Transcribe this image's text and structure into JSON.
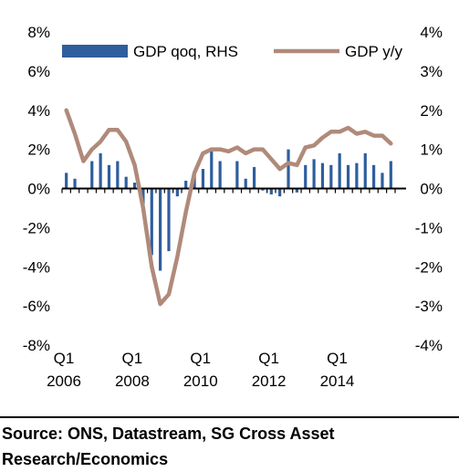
{
  "chart_data": {
    "type": "bar+line",
    "legend": {
      "position": "top"
    },
    "grid": false,
    "left_axis": {
      "ylim": [
        -8,
        8
      ],
      "ticks": [
        "8%",
        "6%",
        "4%",
        "2%",
        "0%",
        "-2%",
        "-4%",
        "-6%",
        "-8%"
      ]
    },
    "right_axis": {
      "ylim": [
        -4,
        4
      ],
      "ticks": [
        "4%",
        "3%",
        "2%",
        "1%",
        "0%",
        "-1%",
        "-2%",
        "-3%",
        "-4%"
      ]
    },
    "x_labels": [
      {
        "top": "Q1",
        "bottom": "2006",
        "x": 2006
      },
      {
        "top": "Q1",
        "bottom": "2008",
        "x": 2008
      },
      {
        "top": "Q1",
        "bottom": "2010",
        "x": 2010
      },
      {
        "top": "Q1",
        "bottom": "2012",
        "x": 2012
      },
      {
        "top": "Q1",
        "bottom": "2014",
        "x": 2014
      }
    ],
    "quarters": [
      "2006Q1",
      "2006Q2",
      "2006Q3",
      "2006Q4",
      "2007Q1",
      "2007Q2",
      "2007Q3",
      "2007Q4",
      "2008Q1",
      "2008Q2",
      "2008Q3",
      "2008Q4",
      "2009Q1",
      "2009Q2",
      "2009Q3",
      "2009Q4",
      "2010Q1",
      "2010Q2",
      "2010Q3",
      "2010Q4",
      "2011Q1",
      "2011Q2",
      "2011Q3",
      "2011Q4",
      "2012Q1",
      "2012Q2",
      "2012Q3",
      "2012Q4",
      "2013Q1",
      "2013Q2",
      "2013Q3",
      "2013Q4",
      "2014Q1",
      "2014Q2",
      "2014Q3",
      "2014Q4",
      "2015Q1",
      "2015Q2",
      "2015Q3"
    ],
    "series": [
      {
        "name": "GDP qoq, RHS",
        "type": "bar",
        "axis": "right",
        "color": "#2e5e9e",
        "values": [
          0.4,
          0.25,
          0.0,
          0.7,
          0.9,
          0.6,
          0.7,
          0.3,
          0.15,
          -0.6,
          -1.7,
          -2.1,
          -1.6,
          -0.2,
          0.2,
          0.4,
          0.5,
          0.95,
          0.7,
          0.0,
          0.7,
          0.25,
          0.55,
          -0.05,
          -0.15,
          -0.2,
          1.0,
          -0.1,
          0.6,
          0.75,
          0.65,
          0.6,
          0.9,
          0.6,
          0.65,
          0.9,
          0.6,
          0.4,
          0.7
        ]
      },
      {
        "name": "GDP y/y",
        "type": "line",
        "axis": "left",
        "color": "#b08a7a",
        "values": [
          4.0,
          2.8,
          1.4,
          2.0,
          2.4,
          3.0,
          3.0,
          2.4,
          1.2,
          -1.0,
          -4.0,
          -5.9,
          -5.4,
          -3.5,
          -1.2,
          0.8,
          1.8,
          2.0,
          2.0,
          1.9,
          2.1,
          1.8,
          2.0,
          2.0,
          1.5,
          1.0,
          1.3,
          1.2,
          2.1,
          2.2,
          2.6,
          2.9,
          2.9,
          3.1,
          2.8,
          2.9,
          2.7,
          2.7,
          2.3
        ]
      }
    ]
  },
  "source_text": "Source: ONS, Datastream, SG Cross Asset Research/Economics"
}
